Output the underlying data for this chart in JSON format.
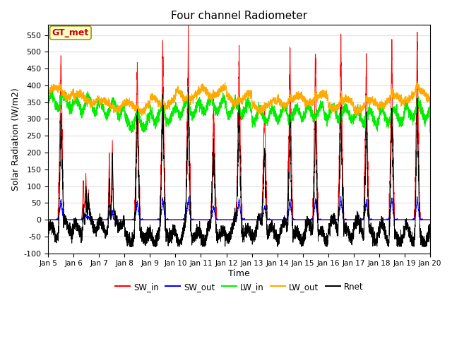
{
  "title": "Four channel Radiometer",
  "xlabel": "Time",
  "ylabel": "Solar Radiation (W/m2)",
  "ylim": [
    -100,
    580
  ],
  "xlim": [
    0,
    15
  ],
  "annotation": "GT_met",
  "annotation_color": "#cc0000",
  "annotation_bg": "#ffffcc",
  "legend": [
    "SW_in",
    "SW_out",
    "LW_in",
    "LW_out",
    "Rnet"
  ],
  "colors": {
    "SW_in": "#ff0000",
    "SW_out": "#0000ff",
    "LW_in": "#00ee00",
    "LW_out": "#ffaa00",
    "Rnet": "#000000"
  },
  "xtick_labels": [
    "Jan 5",
    "Jan 6",
    "Jan 7",
    "Jan 8",
    "Jan 9",
    "Jan 10",
    "Jan 11",
    "Jan 12",
    "Jan 13",
    "Jan 14",
    "Jan 15",
    "Jan 16",
    "Jan 17",
    "Jan 18",
    "Jan 19",
    "Jan 20"
  ],
  "ytick_values": [
    -100,
    -50,
    0,
    50,
    100,
    150,
    200,
    250,
    300,
    350,
    400,
    450,
    500,
    550
  ],
  "grid_color": "#e0e0e0",
  "bg_color": "#ffffff"
}
